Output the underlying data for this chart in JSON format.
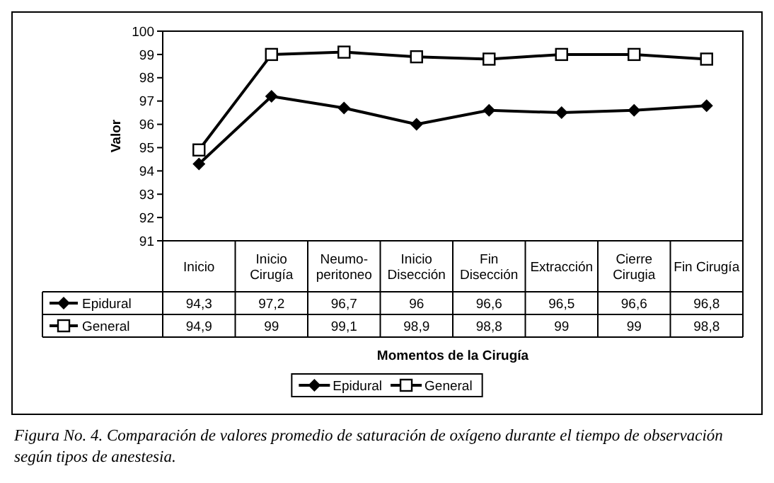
{
  "chart_data": {
    "type": "line",
    "ylabel": "Valor",
    "xlabel": "Momentos de la Cirugía",
    "categories": [
      "Inicio",
      "Inicio Cirugía",
      "Neumo-peritoneo",
      "Inicio Disección",
      "Fin Disección",
      "Extracción",
      "Cierre Cirugia",
      "Fin Cirugía"
    ],
    "series": [
      {
        "name": "Epidural",
        "color": "#000000",
        "marker": "diamond",
        "values": [
          94.3,
          97.2,
          96.7,
          96,
          96.6,
          96.5,
          96.6,
          96.8
        ],
        "value_labels": [
          "94,3",
          "97,2",
          "96,7",
          "96",
          "96,6",
          "96,5",
          "96,6",
          "96,8"
        ]
      },
      {
        "name": "General",
        "color": "#000000",
        "marker": "square",
        "values": [
          94.9,
          99,
          99.1,
          98.9,
          98.8,
          99,
          99,
          98.8
        ],
        "value_labels": [
          "94,9",
          "99",
          "99,1",
          "98,9",
          "98,8",
          "99",
          "99",
          "98,8"
        ]
      }
    ],
    "ylim": [
      91,
      100
    ],
    "yticks": [
      91,
      92,
      93,
      94,
      95,
      96,
      97,
      98,
      99,
      100
    ],
    "grid": false,
    "legend": "bottom",
    "data_labels": true,
    "line_style": "solid",
    "annotations": [
      "Figura No. 4. Comparación de valores promedio de saturación de oxígeno durante el tiempo de observación según tipos de anestesia."
    ]
  }
}
